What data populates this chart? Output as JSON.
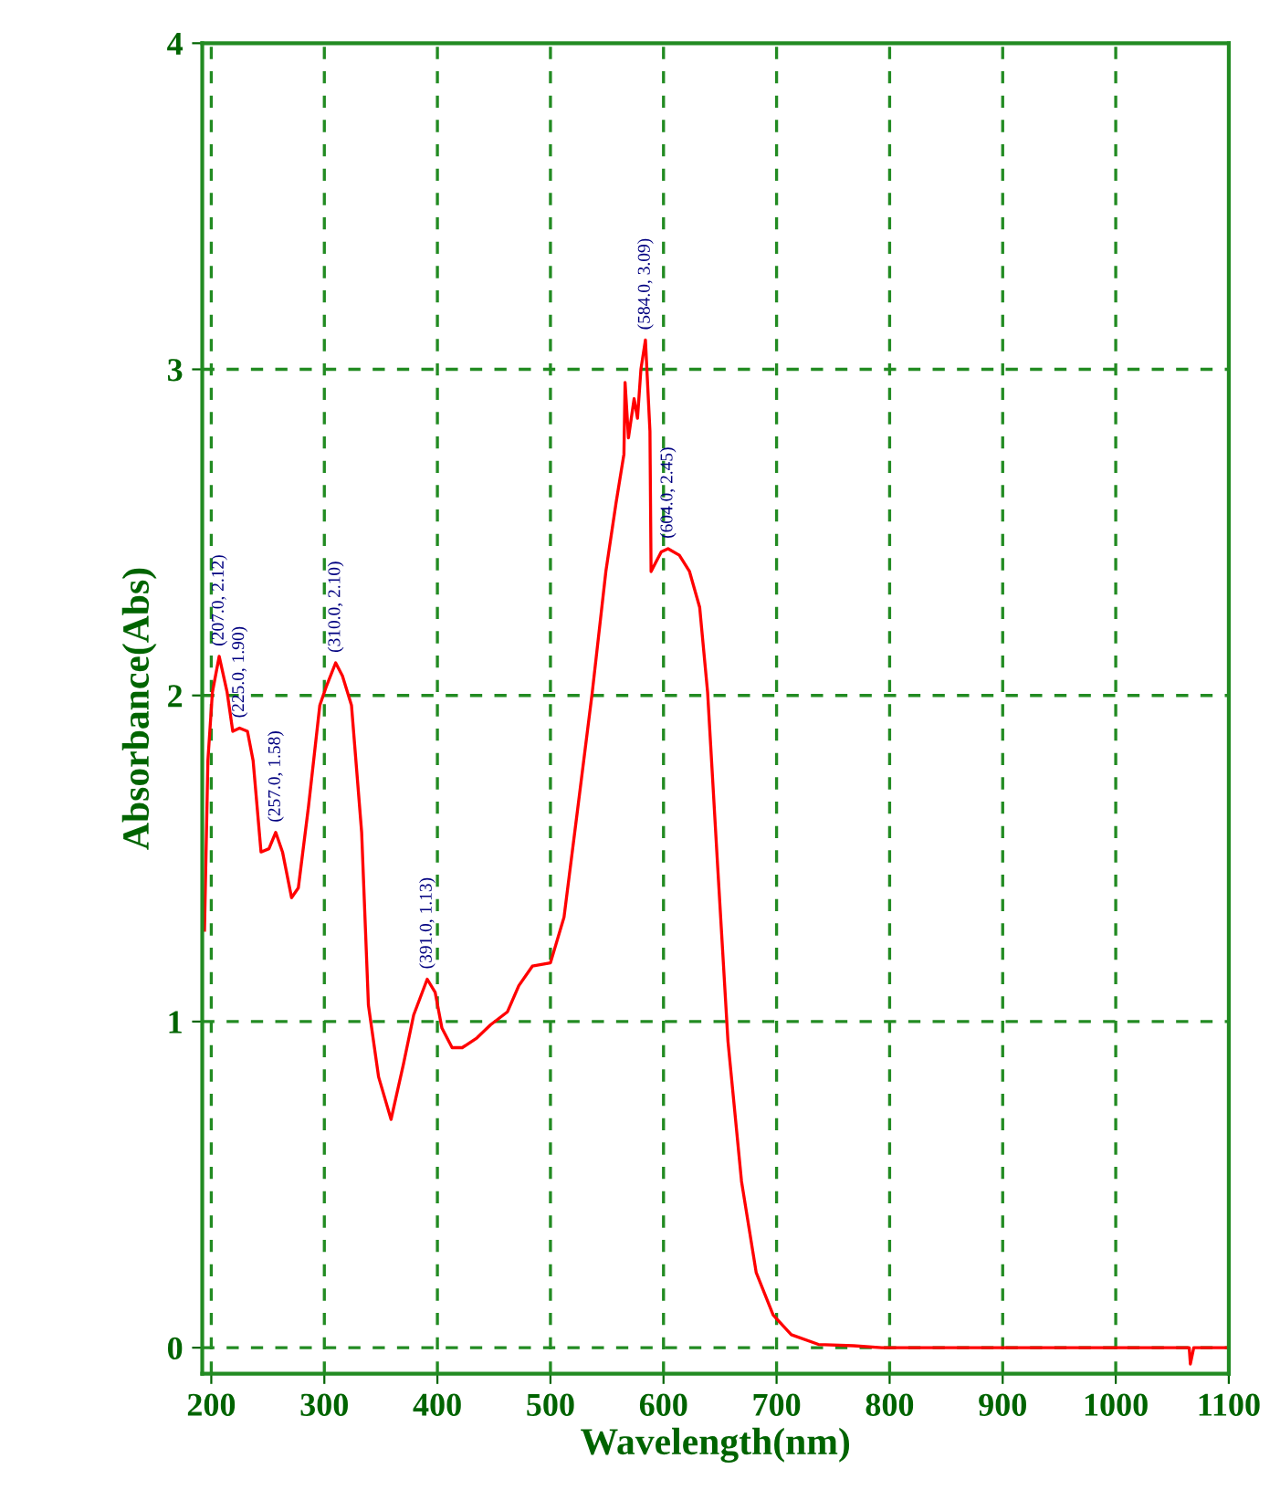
{
  "chart_data": {
    "type": "line",
    "xlabel": "Wavelength(nm)",
    "ylabel": "Absorbance(Abs)",
    "x": [
      194,
      197,
      201,
      207,
      214,
      219,
      225,
      232,
      237,
      244,
      251,
      257,
      263,
      271,
      277,
      286,
      296,
      302,
      310,
      316,
      324,
      333,
      339,
      348,
      359,
      370,
      379,
      391,
      398,
      404,
      413,
      422,
      435,
      447,
      462,
      472,
      484,
      500,
      512,
      524,
      537,
      549,
      558,
      565,
      566,
      569,
      574,
      577,
      580,
      584,
      588,
      589,
      592,
      598,
      604,
      614,
      623,
      632,
      639,
      648,
      657,
      669,
      682,
      697,
      713,
      737,
      768,
      793,
      1065,
      1066,
      1069,
      1100
    ],
    "series": [
      {
        "color": "#ff0000",
        "values": [
          1.28,
          1.8,
          2.01,
          2.12,
          2.01,
          1.89,
          1.9,
          1.89,
          1.8,
          1.52,
          1.53,
          1.58,
          1.52,
          1.38,
          1.41,
          1.66,
          1.97,
          2.03,
          2.1,
          2.06,
          1.97,
          1.58,
          1.05,
          0.83,
          0.7,
          0.87,
          1.02,
          1.13,
          1.09,
          0.98,
          0.92,
          0.92,
          0.95,
          0.99,
          1.03,
          1.11,
          1.17,
          1.18,
          1.32,
          1.65,
          2.01,
          2.38,
          2.59,
          2.74,
          2.96,
          2.79,
          2.91,
          2.85,
          3.0,
          3.09,
          2.81,
          2.38,
          2.4,
          2.44,
          2.45,
          2.43,
          2.38,
          2.27,
          2.01,
          1.47,
          0.94,
          0.51,
          0.23,
          0.1,
          0.04,
          0.01,
          0.006,
          0,
          0,
          -0.05,
          0,
          0
        ]
      }
    ],
    "xlim": [
      192,
      1100
    ],
    "ylim": [
      -0.08,
      4
    ],
    "xticks": [
      200,
      300,
      400,
      500,
      600,
      700,
      800,
      900,
      1000,
      1100
    ],
    "yticks": [
      0,
      1,
      2,
      3,
      4
    ],
    "grid": true,
    "legend": false,
    "marker": "none",
    "line_style": "solid",
    "annotations": [
      {
        "text": "(207.0, 2.12)",
        "x": 207,
        "y": 2.12
      },
      {
        "text": "(225.0, 1.90)",
        "x": 225,
        "y": 1.9
      },
      {
        "text": "(257.0, 1.58)",
        "x": 257,
        "y": 1.58
      },
      {
        "text": "(310.0, 2.10)",
        "x": 310,
        "y": 2.1
      },
      {
        "text": "(391.0, 1.13)",
        "x": 391,
        "y": 1.13
      },
      {
        "text": "(584.0, 3.09)",
        "x": 584,
        "y": 3.09
      },
      {
        "text": "(604.0, 2.45)",
        "x": 604,
        "y": 2.45
      }
    ]
  }
}
